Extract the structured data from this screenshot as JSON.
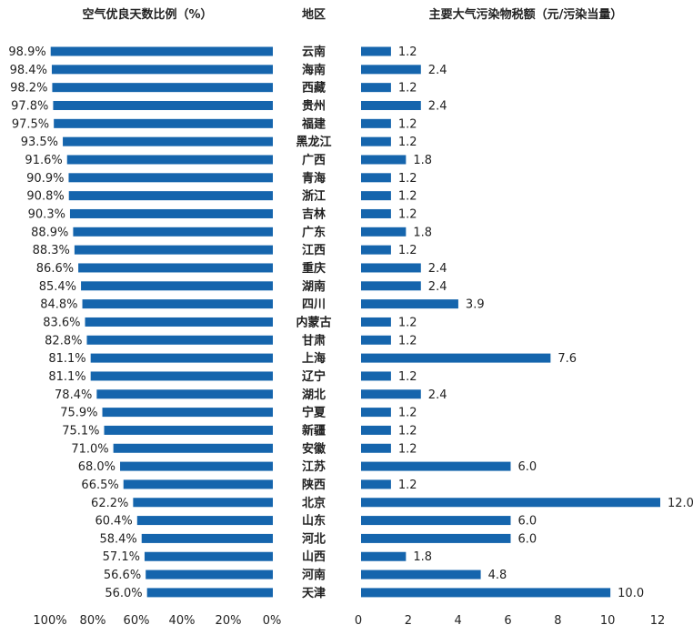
{
  "chart_data": [
    {
      "type": "bar",
      "orientation": "horizontal",
      "direction": "right-to-left",
      "title": "空气优良天数比例（%）",
      "categories": [
        "云南",
        "海南",
        "西藏",
        "贵州",
        "福建",
        "黑龙江",
        "广西",
        "青海",
        "浙江",
        "吉林",
        "广东",
        "江西",
        "重庆",
        "湖南",
        "四川",
        "内蒙古",
        "甘肃",
        "上海",
        "辽宁",
        "湖北",
        "宁夏",
        "新疆",
        "安徽",
        "江苏",
        "陕西",
        "北京",
        "山东",
        "河北",
        "山西",
        "河南",
        "天津"
      ],
      "values": [
        98.9,
        98.4,
        98.2,
        97.8,
        97.5,
        93.5,
        91.6,
        90.9,
        90.8,
        90.3,
        88.9,
        88.3,
        86.6,
        85.4,
        84.8,
        83.6,
        82.8,
        81.1,
        81.1,
        78.4,
        75.9,
        75.1,
        71.0,
        68.0,
        66.5,
        62.2,
        60.4,
        58.4,
        57.1,
        56.6,
        56.0
      ],
      "value_labels": [
        "98.9%",
        "98.4%",
        "98.2%",
        "97.8%",
        "97.5%",
        "93.5%",
        "91.6%",
        "90.9%",
        "90.8%",
        "90.3%",
        "88.9%",
        "88.3%",
        "86.6%",
        "85.4%",
        "84.8%",
        "83.6%",
        "82.8%",
        "81.1%",
        "81.1%",
        "78.4%",
        "75.9%",
        "75.1%",
        "71.0%",
        "68.0%",
        "66.5%",
        "62.2%",
        "60.4%",
        "58.4%",
        "57.1%",
        "56.6%",
        "56.0%"
      ],
      "xlim": [
        100,
        0
      ],
      "xticks": [
        "100%",
        "80%",
        "60%",
        "40%",
        "20%",
        "0%"
      ],
      "color": "#1565ad"
    },
    {
      "type": "bar",
      "orientation": "horizontal",
      "title": "主要大气污染物税额（元/污染当量）",
      "values": [
        1.2,
        2.4,
        1.2,
        2.4,
        1.2,
        1.2,
        1.8,
        1.2,
        1.2,
        1.2,
        1.8,
        1.2,
        2.4,
        2.4,
        3.9,
        1.2,
        1.2,
        7.6,
        1.2,
        2.4,
        1.2,
        1.2,
        1.2,
        6.0,
        1.2,
        12.0,
        6.0,
        6.0,
        1.8,
        4.8,
        10.0
      ],
      "value_labels": [
        "1.2",
        "2.4",
        "1.2",
        "2.4",
        "1.2",
        "1.2",
        "1.8",
        "1.2",
        "1.2",
        "1.2",
        "1.8",
        "1.2",
        "2.4",
        "2.4",
        "3.9",
        "1.2",
        "1.2",
        "7.6",
        "1.2",
        "2.4",
        "1.2",
        "1.2",
        "1.2",
        "6.0",
        "1.2",
        "12.0",
        "6.0",
        "6.0",
        "1.8",
        "4.8",
        "10.0"
      ],
      "xlim": [
        0,
        12
      ],
      "xticks": [
        "0",
        "2",
        "4",
        "6",
        "8",
        "10",
        "12"
      ],
      "color": "#1565ad"
    }
  ],
  "category_header": "地区"
}
